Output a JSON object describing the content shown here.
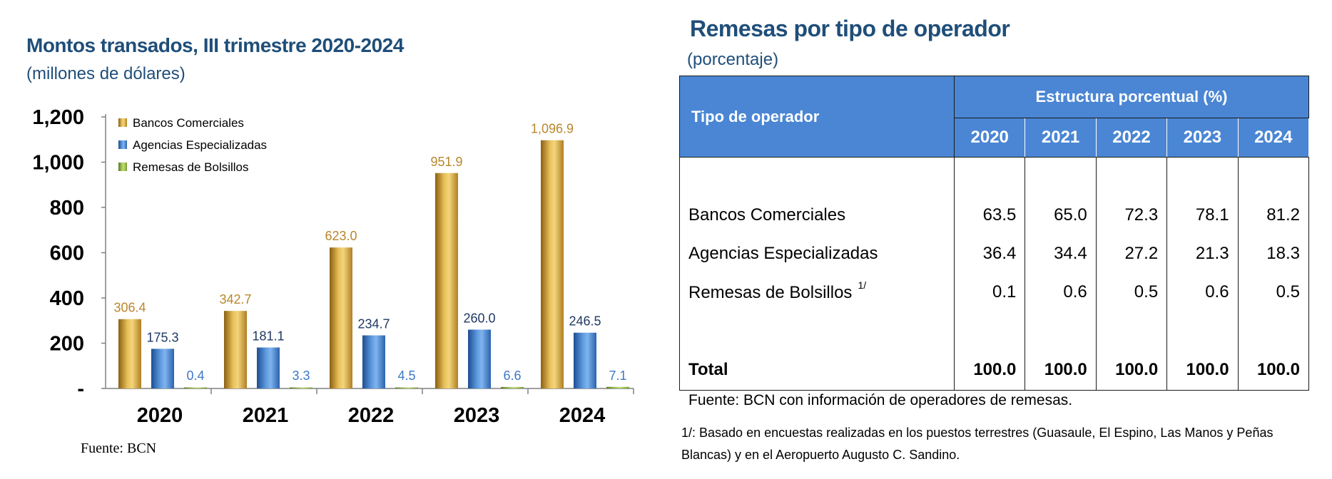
{
  "left": {
    "title": "Montos transados, III trimestre 2020-2024",
    "subtitle": "(millones de dólares)",
    "source": "Fuente: BCN"
  },
  "chart_data": {
    "type": "bar",
    "categories": [
      "2020",
      "2021",
      "2022",
      "2023",
      "2024"
    ],
    "series": [
      {
        "name": "Bancos Comerciales",
        "values": [
          306.4,
          342.7,
          623.0,
          951.9,
          1096.9
        ],
        "labels": [
          "306.4",
          "342.7",
          "623.0",
          "951.9",
          "1,096.9"
        ],
        "color": "#c9962c",
        "label_color": "#b8862b"
      },
      {
        "name": "Agencias Especializadas",
        "values": [
          175.3,
          181.1,
          234.7,
          260.0,
          246.5
        ],
        "labels": [
          "175.3",
          "181.1",
          "234.7",
          "260.0",
          "246.5"
        ],
        "color": "#3b78c8",
        "label_color": "#1f3864"
      },
      {
        "name": "Remesas de Bolsillos",
        "values": [
          0.4,
          3.3,
          4.5,
          6.6,
          7.1
        ],
        "labels": [
          "0.4",
          "3.3",
          "4.5",
          "6.6",
          "7.1"
        ],
        "color": "#8db040",
        "label_color": "#3b78c8"
      }
    ],
    "yticks": [
      {
        "value": 0,
        "label": "-"
      },
      {
        "value": 200,
        "label": "200"
      },
      {
        "value": 400,
        "label": "400"
      },
      {
        "value": 600,
        "label": "600"
      },
      {
        "value": 800,
        "label": "800"
      },
      {
        "value": 1000,
        "label": "1,000"
      },
      {
        "value": 1200,
        "label": "1,200"
      }
    ],
    "ylim": [
      0,
      1200
    ],
    "legend_position": "top-left",
    "grid": false
  },
  "right": {
    "title": "Remesas por tipo de operador",
    "subtitle": "(porcentaje)",
    "header_operator": "Tipo de operador",
    "header_group": "Estructura porcentual (%)",
    "years": [
      "2020",
      "2021",
      "2022",
      "2023",
      "2024"
    ],
    "rows": [
      {
        "label": "Bancos Comerciales",
        "note": "",
        "values": [
          "63.5",
          "65.0",
          "72.3",
          "78.1",
          "81.2"
        ]
      },
      {
        "label": "Agencias Especializadas",
        "note": "",
        "values": [
          "36.4",
          "34.4",
          "27.2",
          "21.3",
          "18.3"
        ]
      },
      {
        "label": "Remesas de Bolsillos",
        "note": "1/",
        "values": [
          "0.1",
          "0.6",
          "0.5",
          "0.6",
          "0.5"
        ]
      }
    ],
    "total": {
      "label": "Total",
      "values": [
        "100.0",
        "100.0",
        "100.0",
        "100.0",
        "100.0"
      ]
    },
    "source": "Fuente: BCN con información de operadores de remesas.",
    "footnote": "1/: Basado en encuestas realizadas en los puestos terrestres (Guasaule, El Espino, Las Manos y Peñas Blancas) y en el Aeropuerto Augusto C. Sandino."
  }
}
